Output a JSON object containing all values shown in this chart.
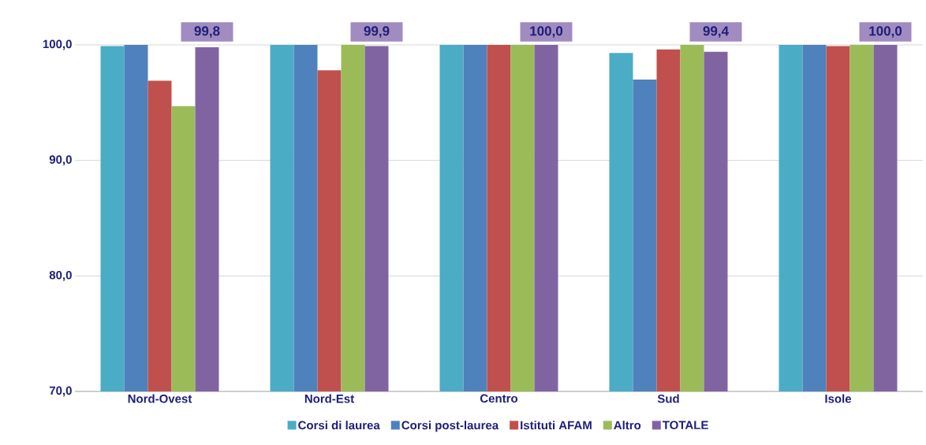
{
  "chart_data": {
    "type": "bar",
    "categories": [
      "Nord-Ovest",
      "Nord-Est",
      "Centro",
      "Sud",
      "Isole"
    ],
    "series": [
      {
        "name": "Corsi di laurea",
        "color": "#4bacc6",
        "values": [
          99.9,
          100.0,
          100.0,
          99.3,
          100.0
        ]
      },
      {
        "name": "Corsi post-laurea",
        "color": "#4f81bd",
        "values": [
          100.0,
          100.0,
          100.0,
          97.0,
          100.0
        ]
      },
      {
        "name": "Istituti AFAM",
        "color": "#c0504d",
        "values": [
          96.9,
          97.8,
          100.0,
          99.6,
          99.9
        ]
      },
      {
        "name": "Altro",
        "color": "#9bbb59",
        "values": [
          94.7,
          100.0,
          100.0,
          100.0,
          100.0
        ]
      },
      {
        "name": "TOTALE",
        "color": "#8064a2",
        "values": [
          99.8,
          99.9,
          100.0,
          99.4,
          100.0
        ],
        "value_labels": [
          "99,8",
          "99,9",
          "100,0",
          "99,4",
          "100,0"
        ]
      }
    ],
    "ylim": [
      70,
      100
    ],
    "yticks": [
      {
        "value": 70,
        "label": "70,0"
      },
      {
        "value": 80,
        "label": "80,0"
      },
      {
        "value": 90,
        "label": "90,0"
      },
      {
        "value": 100,
        "label": "100,0"
      }
    ],
    "grid": "y",
    "legend": "bottom"
  }
}
